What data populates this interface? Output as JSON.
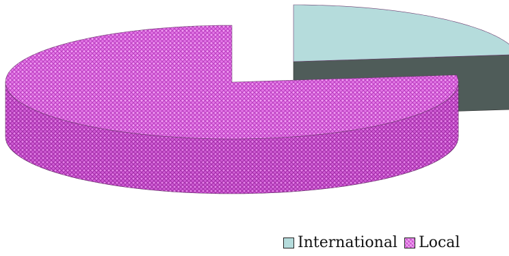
{
  "chart_data": {
    "type": "pie",
    "style": "3d-exploded",
    "categories": [
      "International",
      "Local"
    ],
    "values": [
      23,
      77
    ],
    "colors": {
      "International": "#b5dcdc",
      "International_side": "#4f5c59",
      "Local": "#e373e6",
      "Local_side": "#c84fd0"
    },
    "legend": {
      "position": "bottom-right",
      "items": [
        {
          "label": "International"
        },
        {
          "label": "Local"
        }
      ]
    }
  }
}
